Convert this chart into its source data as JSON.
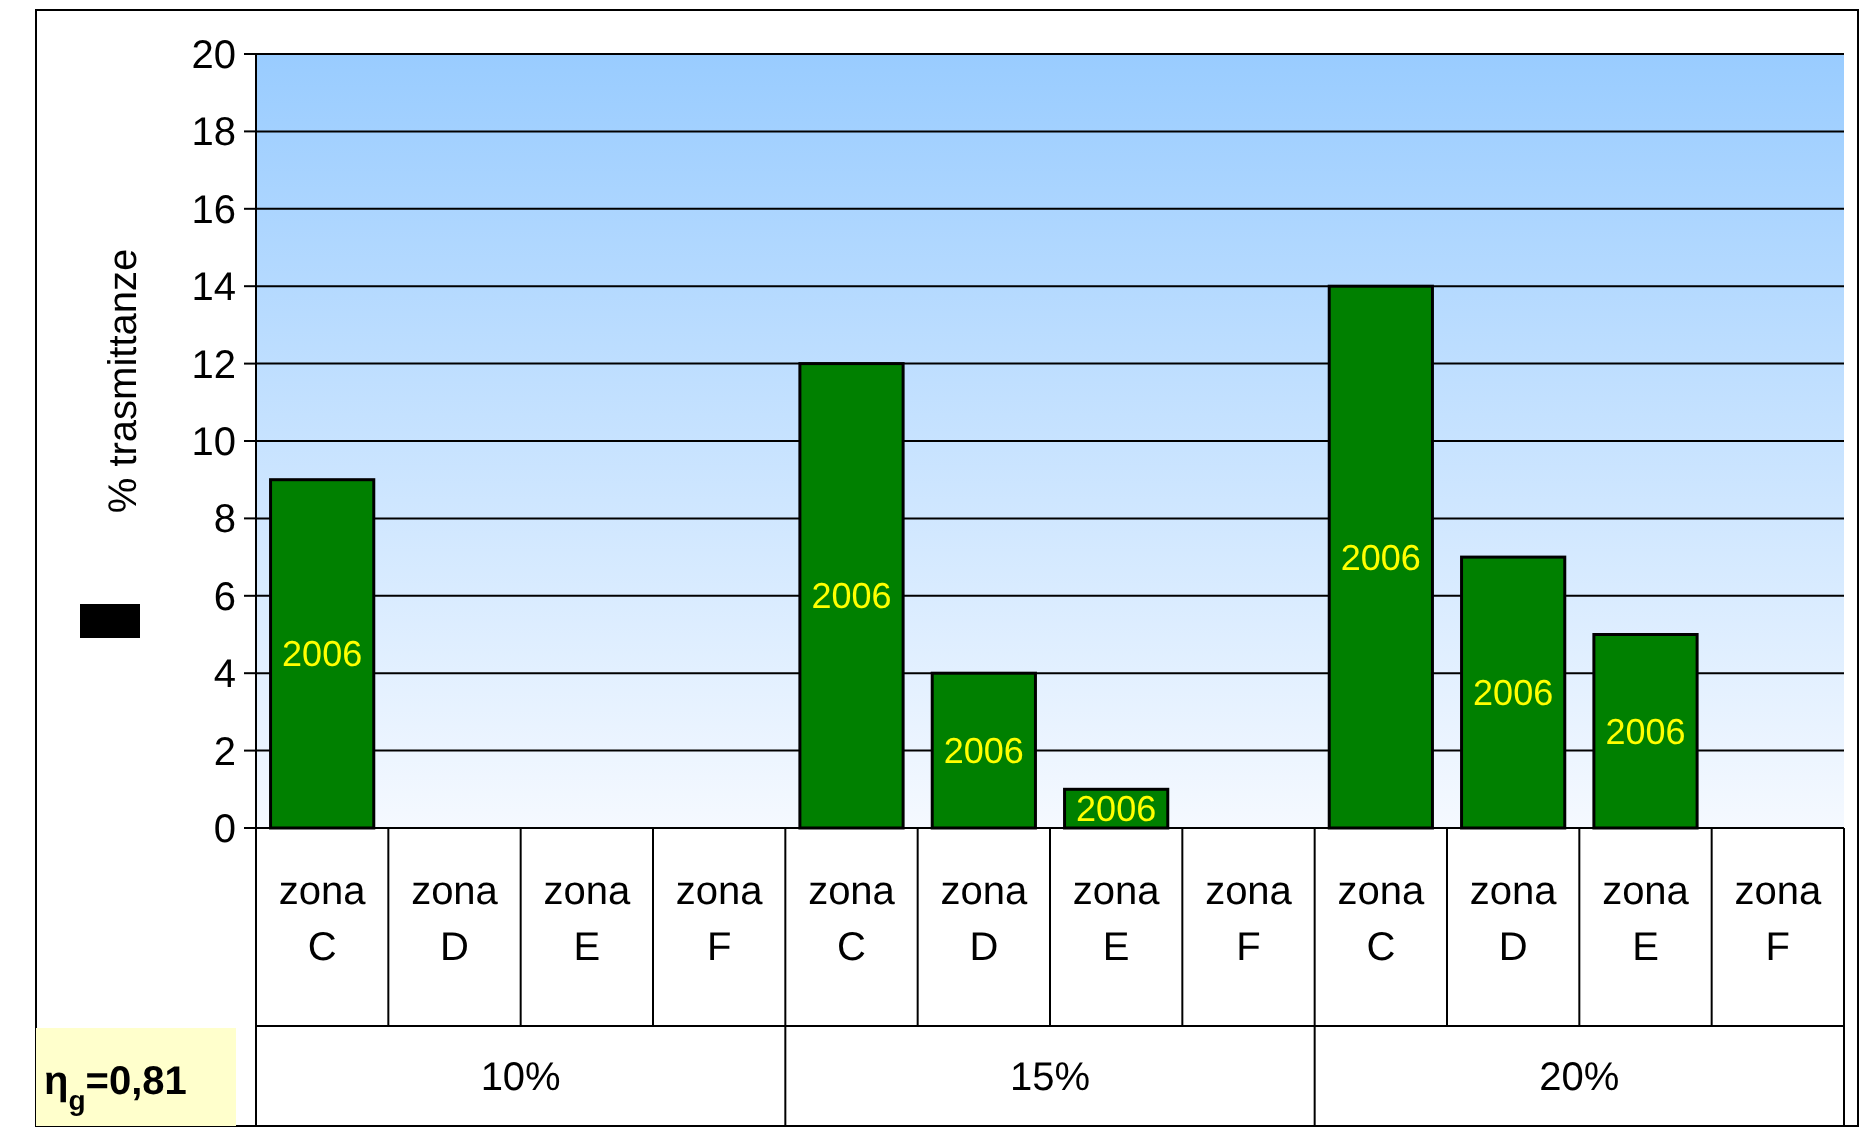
{
  "chart_data": {
    "type": "bar",
    "ylabel": "% trasmittanze",
    "categories": [
      "zona C",
      "zona D",
      "zona E",
      "zona F",
      "zona C",
      "zona D",
      "zona E",
      "zona F",
      "zona C",
      "zona D",
      "zona E",
      "zona F"
    ],
    "series": [
      {
        "name": "2006",
        "color": "#008000",
        "values": [
          9,
          null,
          null,
          null,
          12,
          4,
          1,
          null,
          14,
          7,
          5,
          null
        ]
      }
    ],
    "ylim": [
      0,
      20
    ],
    "yticks": [
      0,
      2,
      4,
      6,
      8,
      10,
      12,
      14,
      16,
      18,
      20
    ],
    "grid": "y",
    "annotations": [
      "η$_{g}$=0,81",
      "10%",
      "15%",
      "20%"
    ]
  }
}
